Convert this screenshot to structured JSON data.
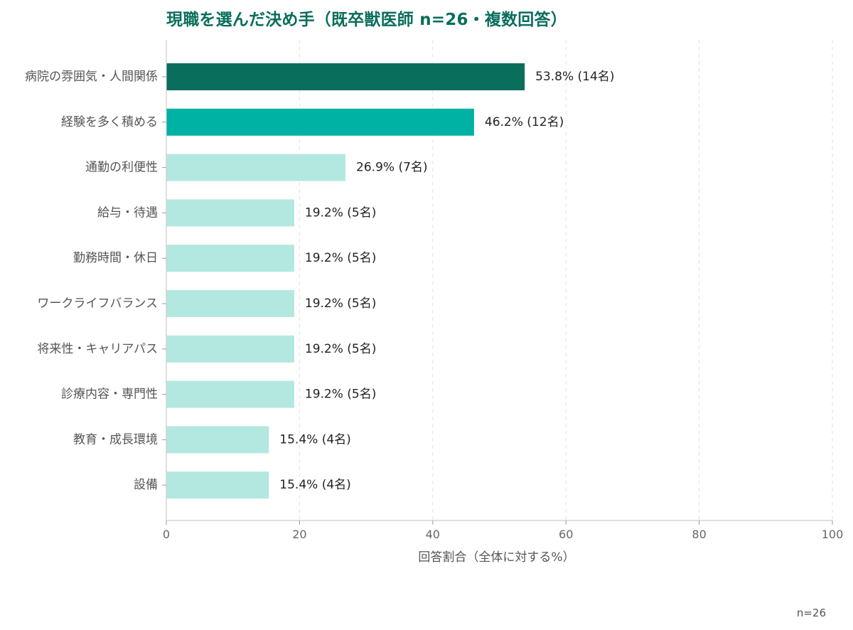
{
  "chart_data": {
    "type": "bar",
    "orientation": "horizontal",
    "title": "現職を選んだ決め手（既卒獣医師 n=26・複数回答）",
    "xlabel": "回答割合（全体に対する%）",
    "ylabel": "",
    "xlim": [
      0,
      100
    ],
    "xticks": [
      0,
      20,
      40,
      60,
      80,
      100
    ],
    "grid": "vertical dashed",
    "categories": [
      "病院の雰囲気・人間関係",
      "経験を多く積める",
      "通勤の利便性",
      "給与・待遇",
      "勤務時間・休日",
      "ワークライフバランス",
      "将来性・キャリアパス",
      "診療内容・専門性",
      "教育・成長環境",
      "設備"
    ],
    "values": [
      53.8,
      46.2,
      26.9,
      19.2,
      19.2,
      19.2,
      19.2,
      19.2,
      15.4,
      15.4
    ],
    "labels": [
      "53.8% (14名)",
      "46.2% (12名)",
      "26.9% (7名)",
      "19.2% (5名)",
      "19.2% (5名)",
      "19.2% (5名)",
      "19.2% (5名)",
      "19.2% (5名)",
      "15.4% (4名)",
      "15.4% (4名)"
    ],
    "colors": [
      "#0a6e5c",
      "#00b2a3",
      "#b3e8e0",
      "#b3e8e0",
      "#b3e8e0",
      "#b3e8e0",
      "#b3e8e0",
      "#b3e8e0",
      "#b3e8e0",
      "#b3e8e0"
    ]
  },
  "footnote": "n=26"
}
